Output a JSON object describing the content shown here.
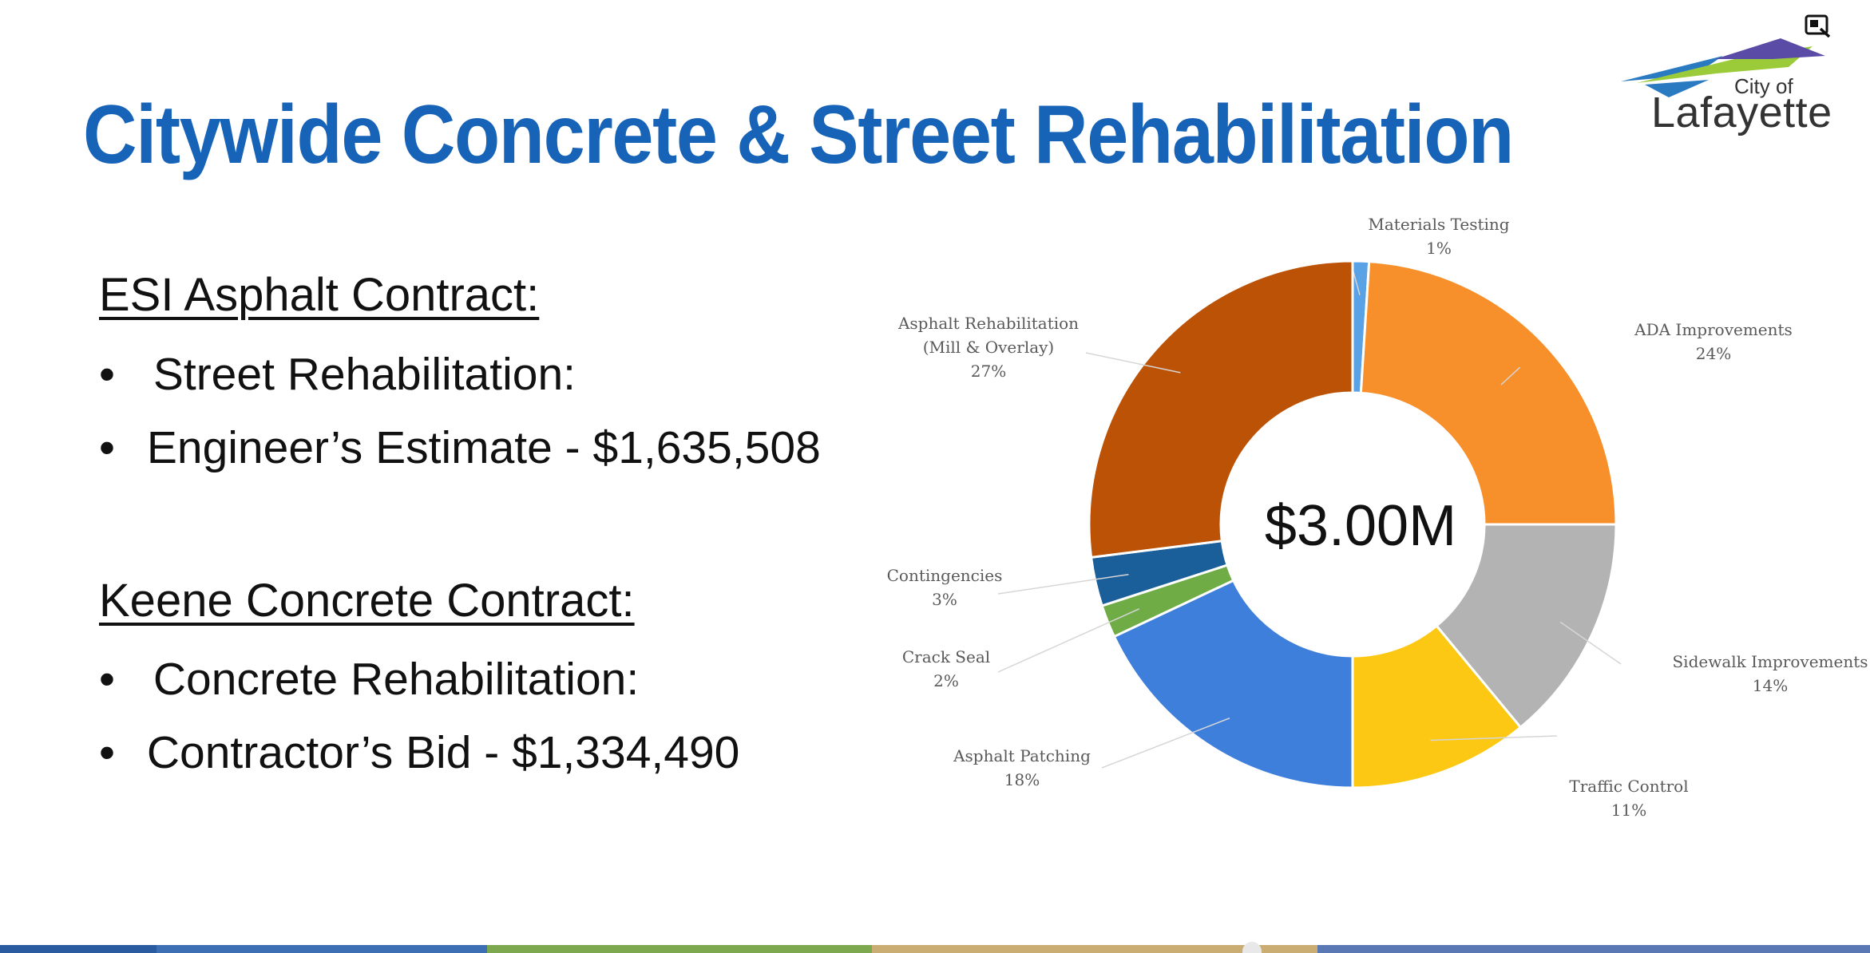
{
  "slide": {
    "title": "Citywide Concrete & Street Rehabilitation",
    "logo_small": "City of",
    "logo_big": "Lafayette"
  },
  "contracts": {
    "esi": {
      "heading": "ESI Asphalt Contract:",
      "line1": "Street Rehabilitation:",
      "line2": "Engineer’s Estimate - $1,635,508"
    },
    "keene": {
      "heading": "Keene Concrete Contract:",
      "line1": "Concrete Rehabilitation:",
      "line2": "Contractor’s Bid - $1,334,490"
    }
  },
  "toolbar": {
    "expand_icon": "expand-icon"
  },
  "chart_data": {
    "type": "pie",
    "donut": true,
    "center_label": "$3.00M",
    "slices": [
      {
        "name": "Materials Testing",
        "label": "1%",
        "value": 1,
        "color": "#5aa2e6"
      },
      {
        "name": "ADA Improvements",
        "label": "24%",
        "value": 24,
        "color": "#f7902a"
      },
      {
        "name": "Sidewalk Improvements",
        "label": "14%",
        "value": 14,
        "color": "#b3b3b3"
      },
      {
        "name": "Traffic Control",
        "label": "11%",
        "value": 11,
        "color": "#fdc813"
      },
      {
        "name": "Asphalt Patching",
        "label": "18%",
        "value": 18,
        "color": "#3f7fdc"
      },
      {
        "name": "Crack Seal",
        "label": "2%",
        "value": 2,
        "color": "#6fac45"
      },
      {
        "name": "Contingencies",
        "label": "3%",
        "value": 3,
        "color": "#1a5e9a"
      },
      {
        "name": "Asphalt Rehabilitation (Mill & Overlay)",
        "label": "27%",
        "value": 27,
        "color": "#bb5205"
      }
    ]
  }
}
